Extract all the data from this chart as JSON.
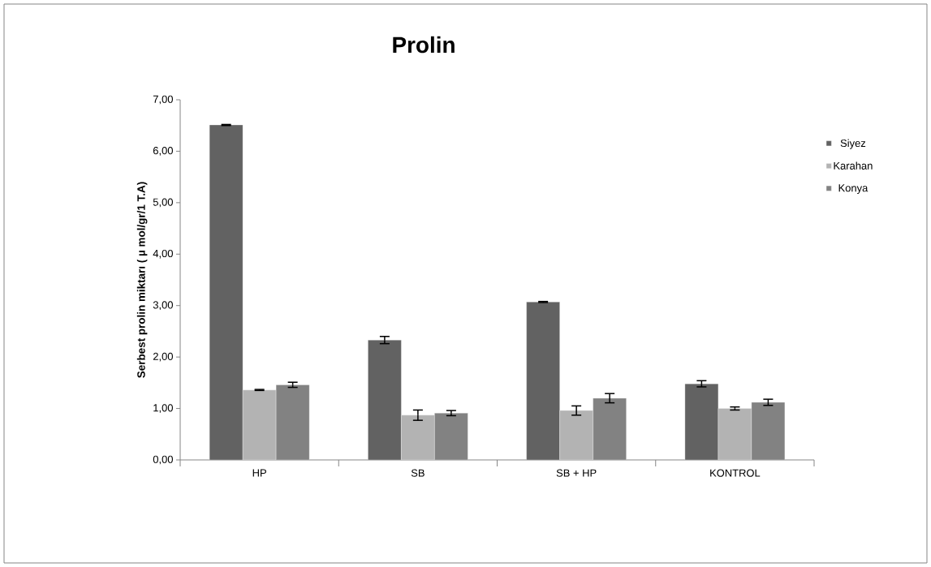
{
  "chart_data": {
    "type": "bar",
    "title": "Prolin",
    "ylabel": "Serbest prolin miktarı ( µ mol/gr/1 T.A)",
    "categories": [
      "HP",
      "SB",
      "SB + HP",
      "KONTROL"
    ],
    "series": [
      {
        "name": "Siyez",
        "color": "#626262",
        "values": [
          6.51,
          2.33,
          3.07,
          1.48
        ],
        "errors": [
          0.01,
          0.07,
          0.01,
          0.06
        ]
      },
      {
        "name": "Karahan",
        "color": "#b3b3b3",
        "values": [
          1.36,
          0.87,
          0.96,
          1.0
        ],
        "errors": [
          0.01,
          0.1,
          0.09,
          0.03
        ]
      },
      {
        "name": "Konya",
        "color": "#828282",
        "values": [
          1.46,
          0.91,
          1.2,
          1.12
        ],
        "errors": [
          0.05,
          0.05,
          0.09,
          0.06
        ]
      }
    ],
    "ylim": [
      0,
      7
    ],
    "yticks": [
      {
        "value": 0,
        "label": "0,00"
      },
      {
        "value": 1,
        "label": "1,00"
      },
      {
        "value": 2,
        "label": "2,00"
      },
      {
        "value": 3,
        "label": "3,00"
      },
      {
        "value": 4,
        "label": "4,00"
      },
      {
        "value": 5,
        "label": "5,00"
      },
      {
        "value": 6,
        "label": "6,00"
      },
      {
        "value": 7,
        "label": "7,00"
      }
    ],
    "grid": false,
    "legend": "right"
  }
}
